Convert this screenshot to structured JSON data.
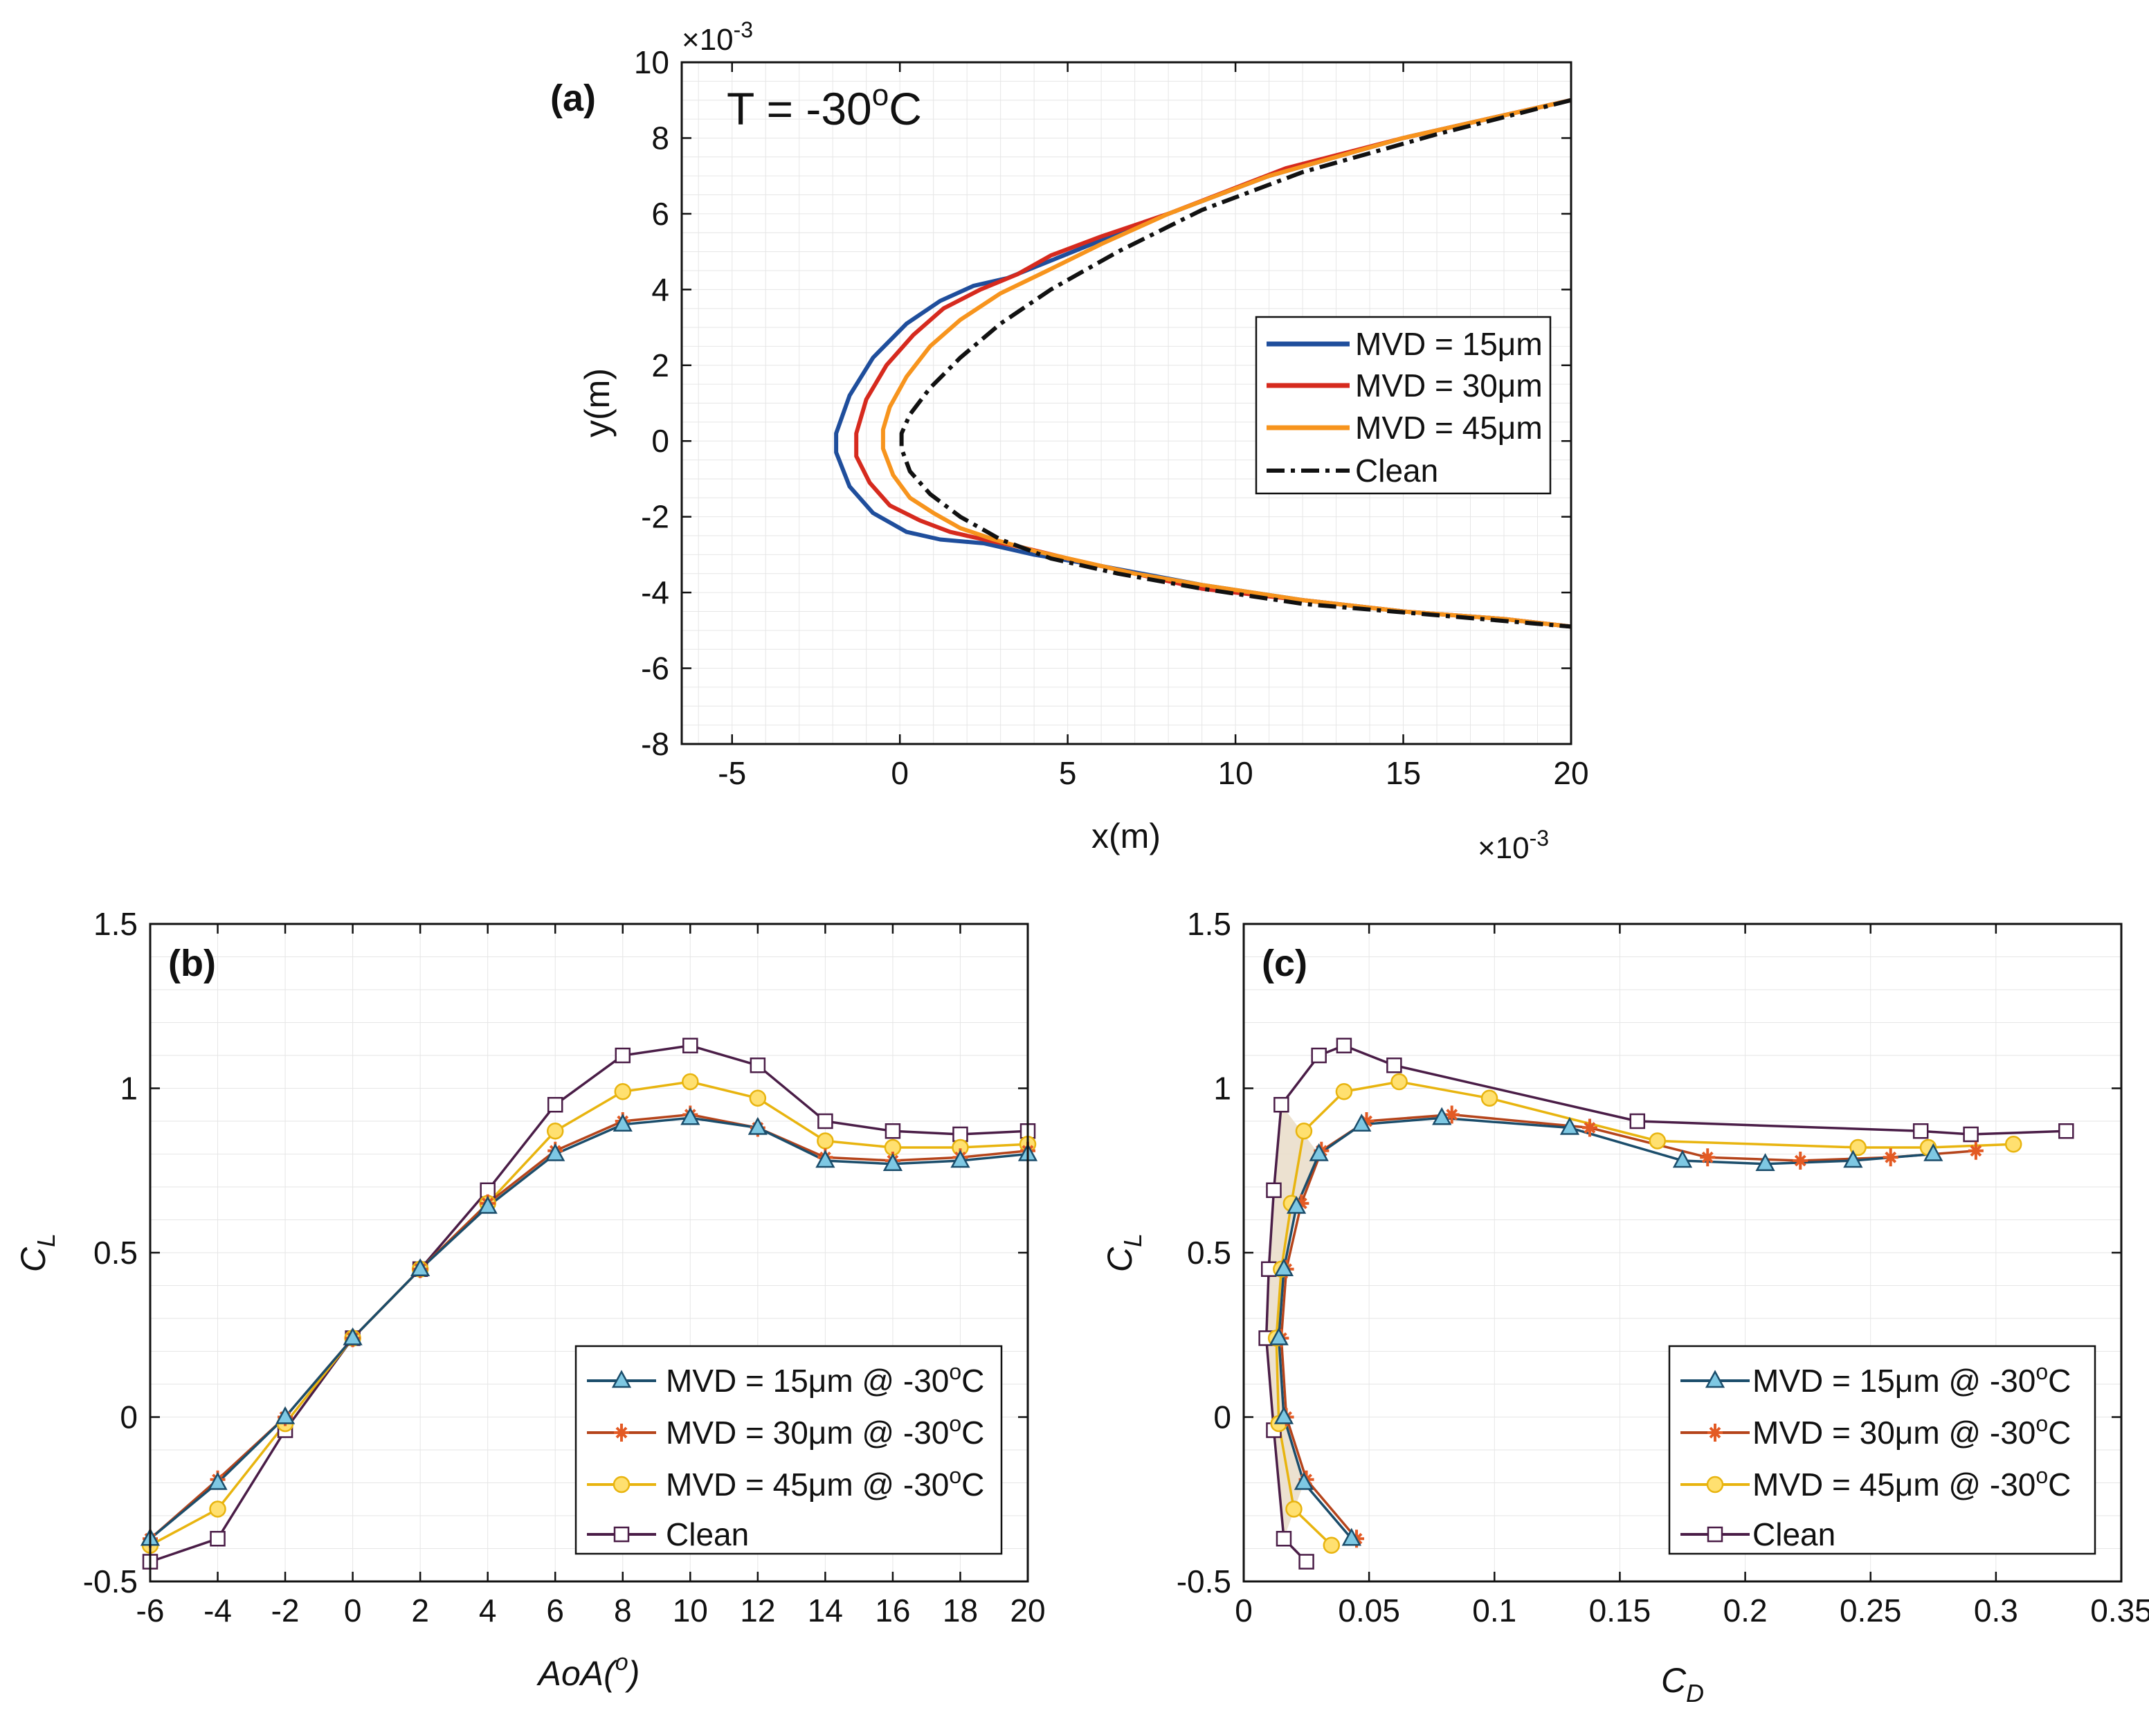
{
  "colors": {
    "mvd15_a": "#1f4e9c",
    "mvd30_a": "#d62a1e",
    "mvd45_a": "#f7941d",
    "clean_a": "#111111",
    "mvd15_b": "#1b4d6b",
    "mvd30_b": "#b5441b",
    "mvd45_b": "#e8b40f",
    "clean_b": "#4a1d47",
    "marker15": "#7ec8e3",
    "marker30": "#e35a24",
    "marker45": "#ffe070",
    "marker_clean": "#ffffff"
  },
  "chart_data": [
    {
      "id": "a",
      "type": "line",
      "panel_label": "(a)",
      "annotation_prefix": "T = -30",
      "annotation_super": "o",
      "annotation_suffix": "C",
      "xlabel": "x(m)",
      "ylabel": "y(m)",
      "x_multiplier": "×10",
      "x_multiplier_exp": "-3",
      "y_multiplier": "×10",
      "y_multiplier_exp": "-3",
      "xlim": [
        -6.5,
        20
      ],
      "ylim": [
        -8,
        10
      ],
      "xticks": [
        "-5",
        "0",
        "5",
        "10",
        "15",
        "20"
      ],
      "xtick_values": [
        -5,
        0,
        5,
        10,
        15,
        20
      ],
      "yticks": [
        "-8",
        "-6",
        "-4",
        "-2",
        "0",
        "2",
        "4",
        "6",
        "8",
        "10"
      ],
      "ytick_values": [
        -8,
        -6,
        -4,
        -2,
        0,
        2,
        4,
        6,
        8,
        10
      ],
      "legend_position": "center-right",
      "series": [
        {
          "name": "MVD = 15μm",
          "color_key": "mvd15_a",
          "dash": "solid",
          "x": [
            20,
            15,
            11,
            8,
            6,
            4.6,
            3.2,
            2.2,
            1.2,
            0.2,
            -0.8,
            -1.5,
            -1.9,
            -1.9,
            -1.5,
            -0.8,
            0.2,
            1.2,
            2.5,
            4,
            6,
            9,
            12,
            15,
            18,
            20
          ],
          "y": [
            9,
            8,
            7,
            6,
            5.3,
            4.8,
            4.3,
            4.1,
            3.7,
            3.1,
            2.2,
            1.2,
            0.2,
            -0.3,
            -1.2,
            -1.9,
            -2.4,
            -2.6,
            -2.7,
            -3,
            -3.3,
            -3.8,
            -4.2,
            -4.5,
            -4.7,
            -4.9
          ]
        },
        {
          "name": "MVD = 30μm",
          "color_key": "mvd30_a",
          "dash": "solid",
          "x": [
            20,
            15,
            11.5,
            8,
            6,
            4.5,
            3.5,
            2.4,
            1.3,
            0.4,
            -0.4,
            -1,
            -1.3,
            -1.3,
            -0.9,
            -0.3,
            0.6,
            1.5,
            2.5,
            3.6,
            5,
            6.5,
            9,
            12,
            15,
            18,
            20
          ],
          "y": [
            9,
            8,
            7.2,
            6,
            5.4,
            4.9,
            4.4,
            4,
            3.5,
            2.8,
            2,
            1.1,
            0.2,
            -0.4,
            -1.1,
            -1.7,
            -2.1,
            -2.4,
            -2.6,
            -2.8,
            -3.1,
            -3.4,
            -3.9,
            -4.2,
            -4.5,
            -4.7,
            -4.9
          ]
        },
        {
          "name": "MVD = 45μm",
          "color_key": "mvd45_a",
          "dash": "solid",
          "x": [
            20,
            15,
            11,
            8,
            6,
            4.4,
            3,
            1.8,
            0.9,
            0.2,
            -0.3,
            -0.5,
            -0.5,
            -0.2,
            0.3,
            1,
            1.8,
            2.8,
            4,
            5.5,
            7,
            9,
            12,
            15,
            18,
            20
          ],
          "y": [
            9,
            8,
            7,
            6,
            5.2,
            4.5,
            3.9,
            3.2,
            2.5,
            1.7,
            0.9,
            0.3,
            -0.2,
            -0.9,
            -1.5,
            -1.9,
            -2.3,
            -2.6,
            -2.9,
            -3.2,
            -3.5,
            -3.8,
            -4.2,
            -4.5,
            -4.7,
            -4.9
          ]
        },
        {
          "name": "Clean",
          "color_key": "clean_a",
          "dash": "dashdot",
          "x": [
            20,
            16,
            12,
            9,
            6.5,
            4.5,
            3,
            1.8,
            0.9,
            0.3,
            0.05,
            0.05,
            0.3,
            0.9,
            1.8,
            3,
            4.5,
            6.5,
            9,
            12,
            16,
            20
          ],
          "y": [
            9,
            8.1,
            7.1,
            6.1,
            5,
            4,
            3.1,
            2.2,
            1.4,
            0.7,
            0.2,
            -0.2,
            -0.8,
            -1.4,
            -2,
            -2.6,
            -3.1,
            -3.5,
            -3.9,
            -4.3,
            -4.6,
            -4.9
          ]
        }
      ]
    },
    {
      "id": "b",
      "type": "line",
      "panel_label": "(b)",
      "xlabel_main": "AoA(",
      "xlabel_super": "o",
      "xlabel_end": ")",
      "ylabel_main": "C",
      "ylabel_sub": "L",
      "xlim": [
        -6,
        20
      ],
      "ylim": [
        -0.5,
        1.5
      ],
      "xticks": [
        "-6",
        "-4",
        "-2",
        "0",
        "2",
        "4",
        "6",
        "8",
        "10",
        "12",
        "14",
        "16",
        "18",
        "20"
      ],
      "xtick_values": [
        -6,
        -4,
        -2,
        0,
        2,
        4,
        6,
        8,
        10,
        12,
        14,
        16,
        18,
        20
      ],
      "yticks": [
        "-0.5",
        "0",
        "0.5",
        "1",
        "1.5"
      ],
      "ytick_values": [
        -0.5,
        0,
        0.5,
        1,
        1.5
      ],
      "legend_position": "bottom-right",
      "x": [
        -6,
        -4,
        -2,
        0,
        2,
        4,
        6,
        8,
        10,
        12,
        14,
        16,
        18,
        20
      ],
      "series": [
        {
          "name": "MVD = 15μm @ -30",
          "super": "o",
          "suffix": "C",
          "marker": "triangle",
          "color_key": "mvd15_b",
          "marker_color_key": "marker15",
          "values": [
            -0.37,
            -0.2,
            0,
            0.24,
            0.45,
            0.64,
            0.8,
            0.89,
            0.91,
            0.88,
            0.78,
            0.77,
            0.78,
            0.8
          ]
        },
        {
          "name": "MVD = 30μm @ -30",
          "super": "o",
          "suffix": "C",
          "marker": "star",
          "color_key": "mvd30_b",
          "marker_color_key": "marker30",
          "values": [
            -0.37,
            -0.19,
            0,
            0.24,
            0.45,
            0.65,
            0.81,
            0.9,
            0.92,
            0.88,
            0.79,
            0.78,
            0.79,
            0.81
          ]
        },
        {
          "name": "MVD = 45μm @ -30",
          "super": "o",
          "suffix": "C",
          "marker": "circle",
          "color_key": "mvd45_b",
          "marker_color_key": "marker45",
          "values": [
            -0.39,
            -0.28,
            -0.02,
            0.24,
            0.45,
            0.65,
            0.87,
            0.99,
            1.02,
            0.97,
            0.84,
            0.82,
            0.82,
            0.83
          ]
        },
        {
          "name": "Clean",
          "super": "",
          "suffix": "",
          "marker": "square",
          "color_key": "clean_b",
          "marker_color_key": "marker_clean",
          "values": [
            -0.44,
            -0.37,
            -0.04,
            0.24,
            0.45,
            0.69,
            0.95,
            1.1,
            1.13,
            1.07,
            0.9,
            0.87,
            0.86,
            0.87
          ]
        }
      ]
    },
    {
      "id": "c",
      "type": "line",
      "panel_label": "(c)",
      "xlabel_main": "C",
      "xlabel_sub": "D",
      "ylabel_main": "C",
      "ylabel_sub": "L",
      "xlim": [
        0,
        0.35
      ],
      "ylim": [
        -0.5,
        1.5
      ],
      "xticks": [
        "0",
        "0.05",
        "0.1",
        "0.15",
        "0.2",
        "0.25",
        "0.3",
        "0.35"
      ],
      "xtick_values": [
        0,
        0.05,
        0.1,
        0.15,
        0.2,
        0.25,
        0.3,
        0.35
      ],
      "yticks": [
        "-0.5",
        "0",
        "0.5",
        "1",
        "1.5"
      ],
      "ytick_values": [
        -0.5,
        0,
        0.5,
        1,
        1.5
      ],
      "legend_position": "bottom-right",
      "series": [
        {
          "name": "MVD = 15μm @ -30",
          "super": "o",
          "suffix": "C",
          "marker": "triangle",
          "color_key": "mvd15_b",
          "marker_color_key": "marker15",
          "x": [
            0.043,
            0.024,
            0.016,
            0.014,
            0.016,
            0.021,
            0.03,
            0.047,
            0.079,
            0.13,
            0.175,
            0.208,
            0.243,
            0.275
          ],
          "y": [
            -0.37,
            -0.2,
            0,
            0.24,
            0.45,
            0.64,
            0.8,
            0.89,
            0.91,
            0.88,
            0.78,
            0.77,
            0.78,
            0.8
          ]
        },
        {
          "name": "MVD = 30μm @ -30",
          "super": "o",
          "suffix": "C",
          "marker": "star",
          "color_key": "mvd30_b",
          "marker_color_key": "marker30",
          "x": [
            0.045,
            0.025,
            0.017,
            0.015,
            0.017,
            0.023,
            0.031,
            0.049,
            0.083,
            0.138,
            0.185,
            0.222,
            0.258,
            0.292
          ],
          "y": [
            -0.37,
            -0.19,
            0,
            0.24,
            0.45,
            0.65,
            0.81,
            0.9,
            0.92,
            0.88,
            0.79,
            0.78,
            0.79,
            0.81
          ]
        },
        {
          "name": "MVD = 45μm @ -30",
          "super": "o",
          "suffix": "C",
          "marker": "circle",
          "color_key": "mvd45_b",
          "marker_color_key": "marker45",
          "x": [
            0.035,
            0.02,
            0.014,
            0.013,
            0.015,
            0.019,
            0.024,
            0.04,
            0.062,
            0.098,
            0.165,
            0.245,
            0.273,
            0.307
          ],
          "y": [
            -0.39,
            -0.28,
            -0.02,
            0.24,
            0.45,
            0.65,
            0.87,
            0.99,
            1.02,
            0.97,
            0.84,
            0.82,
            0.82,
            0.83
          ]
        },
        {
          "name": "Clean",
          "super": "",
          "suffix": "",
          "marker": "square",
          "color_key": "clean_b",
          "marker_color_key": "marker_clean",
          "x": [
            0.025,
            0.016,
            0.012,
            0.009,
            0.01,
            0.012,
            0.015,
            0.03,
            0.04,
            0.06,
            0.157,
            0.27,
            0.29,
            0.328
          ],
          "y": [
            -0.44,
            -0.37,
            -0.04,
            0.24,
            0.45,
            0.69,
            0.95,
            1.1,
            1.13,
            1.07,
            0.9,
            0.87,
            0.86,
            0.87
          ]
        }
      ]
    }
  ]
}
